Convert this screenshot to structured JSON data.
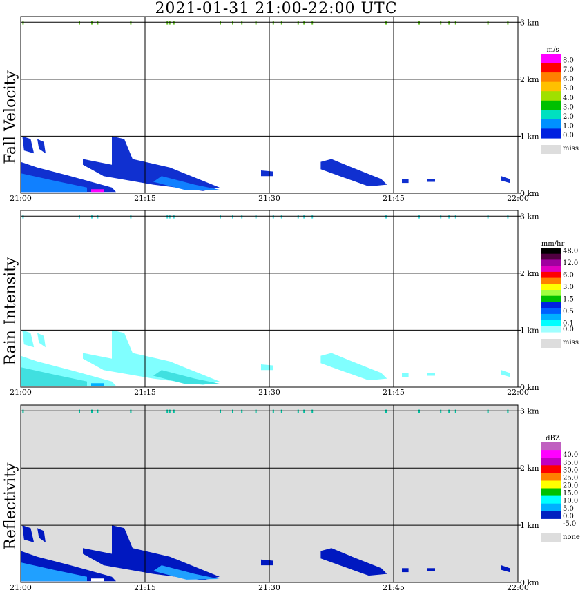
{
  "title": "2021-01-31   21:00-22:00 UTC",
  "x_ticks": [
    "21:00",
    "21:15",
    "21:30",
    "21:45",
    "22:00"
  ],
  "y_ticks": [
    "0 km",
    "1 km",
    "2 km",
    "3 km"
  ],
  "panels": [
    {
      "id": "fall-velocity",
      "label": "Fall Velocity",
      "unit": "m/s",
      "background": "#ffffff",
      "colorbar": [
        {
          "label": "8.0",
          "color": "#ff00ff"
        },
        {
          "label": "7.0",
          "color": "#ff0000"
        },
        {
          "label": "6.0",
          "color": "#ff8000"
        },
        {
          "label": "5.0",
          "color": "#ffc000"
        },
        {
          "label": "4.0",
          "color": "#a0e000"
        },
        {
          "label": "3.0",
          "color": "#00c000"
        },
        {
          "label": "2.0",
          "color": "#00e0c0"
        },
        {
          "label": "1.0",
          "color": "#0090ff"
        },
        {
          "label": "0.0",
          "color": "#0020e0"
        }
      ],
      "miss_label": "miss",
      "miss_color": "#dddddd",
      "echo_colors": {
        "main": "#1030d0",
        "secondary": "#1080ff",
        "highlight": "#ff00ff",
        "top": "#60c020"
      }
    },
    {
      "id": "rain-intensity",
      "label": "Rain Intensity",
      "unit": "mm/hr",
      "background": "#ffffff",
      "colorbar": [
        {
          "label": "48.0",
          "color": "#000000"
        },
        {
          "label": "",
          "color": "#500040"
        },
        {
          "label": "12.0",
          "color": "#a000a0"
        },
        {
          "label": "",
          "color": "#e000c0"
        },
        {
          "label": "6.0",
          "color": "#ff0000"
        },
        {
          "label": "",
          "color": "#ff8000"
        },
        {
          "label": "3.0",
          "color": "#ffff00"
        },
        {
          "label": "",
          "color": "#a0ff40"
        },
        {
          "label": "1.5",
          "color": "#00c000"
        },
        {
          "label": "",
          "color": "#0020e0"
        },
        {
          "label": "0.5",
          "color": "#0060ff"
        },
        {
          "label": "",
          "color": "#00b0ff"
        },
        {
          "label": "0.1",
          "color": "#00ffff"
        },
        {
          "label": "0.0",
          "color": "#a0ffff"
        }
      ],
      "miss_label": "miss",
      "miss_color": "#dddddd",
      "echo_colors": {
        "main": "#80ffff",
        "secondary": "#40e0e0",
        "highlight": "#00b0ff",
        "top": "#40e0e0"
      }
    },
    {
      "id": "reflectivity",
      "label": "Reflectivity",
      "unit": "dBZ",
      "background": "#dddddd",
      "colorbar": [
        {
          "label": "",
          "color": "#c060c0"
        },
        {
          "label": "40.0",
          "color": "#ff00ff"
        },
        {
          "label": "35.0",
          "color": "#c000c0"
        },
        {
          "label": "30.0",
          "color": "#ff0000"
        },
        {
          "label": "25.0",
          "color": "#ff8000"
        },
        {
          "label": "20.0",
          "color": "#ffff00"
        },
        {
          "label": "15.0",
          "color": "#00c000"
        },
        {
          "label": "10.0",
          "color": "#00ffff"
        },
        {
          "label": "5.0",
          "color": "#00b0ff"
        },
        {
          "label": "0.0",
          "color": "#0020c0"
        },
        {
          "label": "-5.0",
          "color": "#ffffff"
        }
      ],
      "miss_label": "none",
      "miss_color": "#dddddd",
      "echo_colors": {
        "main": "#0018c0",
        "secondary": "#20a0ff",
        "highlight": "#ffffff",
        "top": "#00c0a0"
      }
    }
  ],
  "chart_data": {
    "type": "heatmap",
    "title": "2021-01-31   21:00-22:00 UTC",
    "x_range": [
      "21:00",
      "22:00"
    ],
    "y_range_km": [
      0,
      3.1
    ],
    "grid": true,
    "echo_features": [
      {
        "name": "left band",
        "start": "21:00",
        "end": "21:08",
        "top_km": 1.0
      },
      {
        "name": "central band",
        "start": "21:08",
        "end": "21:25",
        "top_km": 1.0
      },
      {
        "name": "mid fragment",
        "start": "21:29",
        "end": "21:31",
        "top_km": 0.4
      },
      {
        "name": "right band",
        "start": "21:37",
        "end": "21:45",
        "top_km": 0.6
      },
      {
        "name": "scattered",
        "start": "21:48",
        "end": "21:59",
        "top_km": 0.3
      }
    ]
  }
}
